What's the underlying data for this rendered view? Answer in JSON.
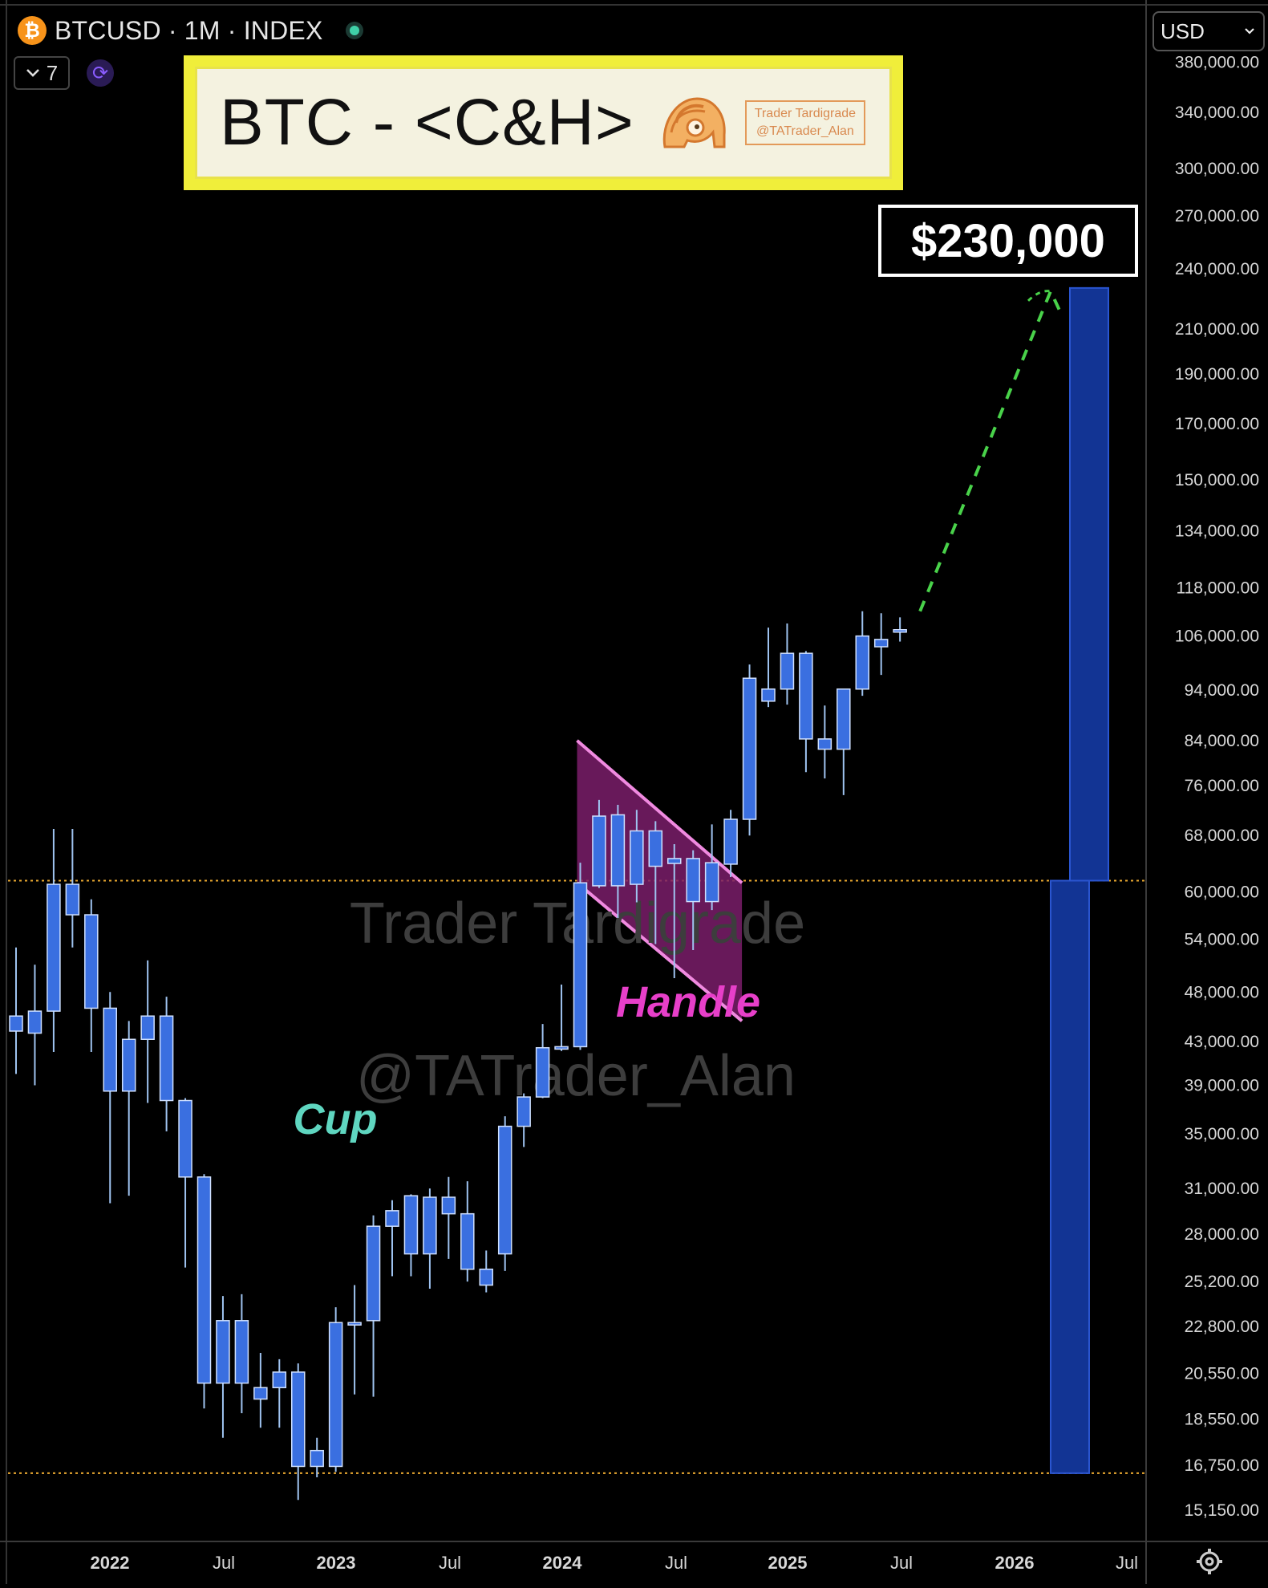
{
  "header": {
    "coin_glyph": "₿",
    "symbol_line": "BTCUSD · 1M · INDEX",
    "collapse_count": "7",
    "currency": "USD"
  },
  "title_box": {
    "title": "BTC - <C&H>",
    "badge_line1": "Trader Tardigrade",
    "badge_line2": "@TATrader_Alan"
  },
  "target_label": "$230,000",
  "watermark": {
    "line1": "Trader Tardigrade",
    "line2": "@TATrader_Alan"
  },
  "annotations": {
    "cup": "Cup",
    "handle": "Handle"
  },
  "colors": {
    "background": "#000000",
    "candle": "#3a6fe0",
    "wick": "#9fc3f0",
    "cup": "#5fd6c0",
    "handle": "#e73fc9",
    "handle_fill": "#7a1d6a",
    "target_bar": "#123494",
    "forecast": "#49d24a",
    "level_line": "#e9a830"
  },
  "chart_data": {
    "type": "candlestick",
    "title": "BTCUSD · 1M · INDEX",
    "y_scale": "log",
    "ylim": [
      14300,
      400000
    ],
    "y_ticks": [
      380000,
      340000,
      300000,
      270000,
      240000,
      210000,
      190000,
      170000,
      150000,
      134000,
      118000,
      106000,
      94000,
      84000,
      76000,
      68000,
      60000,
      54000,
      48000,
      43000,
      39000,
      35000,
      31000,
      28000,
      25200,
      22800,
      20550,
      18550,
      16750,
      15150
    ],
    "x_ticks": [
      "2022",
      "Jul",
      "2023",
      "Jul",
      "2024",
      "Jul",
      "2025",
      "Jul",
      "2026",
      "Jul"
    ],
    "series": [
      {
        "date": "2021-09",
        "open": 44000,
        "high": 53000,
        "low": 40000,
        "close": 45500
      },
      {
        "date": "2021-10",
        "open": 43800,
        "high": 51000,
        "low": 39000,
        "close": 46000
      },
      {
        "date": "2021-11",
        "open": 46000,
        "high": 69000,
        "low": 42000,
        "close": 61000
      },
      {
        "date": "2021-12",
        "open": 61000,
        "high": 69000,
        "low": 53000,
        "close": 57000
      },
      {
        "date": "2022-01",
        "open": 57000,
        "high": 59000,
        "low": 42000,
        "close": 46300
      },
      {
        "date": "2022-02",
        "open": 46300,
        "high": 48000,
        "low": 30000,
        "close": 38500
      },
      {
        "date": "2022-03",
        "open": 38500,
        "high": 45000,
        "low": 30500,
        "close": 43200
      },
      {
        "date": "2022-04",
        "open": 45500,
        "high": 51500,
        "low": 37500,
        "close": 43200
      },
      {
        "date": "2022-05",
        "open": 45500,
        "high": 47500,
        "low": 35200,
        "close": 37700
      },
      {
        "date": "2022-06",
        "open": 37700,
        "high": 37900,
        "low": 26000,
        "close": 31800
      },
      {
        "date": "2022-07",
        "open": 31800,
        "high": 32000,
        "low": 19000,
        "close": 20100
      },
      {
        "date": "2022-08",
        "open": 23100,
        "high": 24400,
        "low": 17800,
        "close": 20100
      },
      {
        "date": "2022-09",
        "open": 23100,
        "high": 24500,
        "low": 18800,
        "close": 20100
      },
      {
        "date": "2022-10",
        "open": 19400,
        "high": 21500,
        "low": 18200,
        "close": 19900
      },
      {
        "date": "2022-11",
        "open": 20600,
        "high": 21200,
        "low": 18200,
        "close": 19900
      },
      {
        "date": "2022-12",
        "open": 20600,
        "high": 21000,
        "low": 15500,
        "close": 16700
      },
      {
        "date": "2023-01",
        "open": 17300,
        "high": 17800,
        "low": 16300,
        "close": 16700
      },
      {
        "date": "2023-02",
        "open": 16700,
        "high": 23800,
        "low": 16500,
        "close": 23000
      },
      {
        "date": "2023-03",
        "open": 23000,
        "high": 25000,
        "low": 19600,
        "close": 23000
      },
      {
        "date": "2023-04",
        "open": 23100,
        "high": 29200,
        "low": 19500,
        "close": 28500
      },
      {
        "date": "2023-05",
        "open": 28500,
        "high": 30200,
        "low": 25500,
        "close": 29500
      },
      {
        "date": "2023-06",
        "open": 30500,
        "high": 30600,
        "low": 25500,
        "close": 26800
      },
      {
        "date": "2023-07",
        "open": 26800,
        "high": 31000,
        "low": 24800,
        "close": 30400
      },
      {
        "date": "2023-08",
        "open": 30400,
        "high": 31800,
        "low": 26500,
        "close": 29300
      },
      {
        "date": "2023-09",
        "open": 29300,
        "high": 31500,
        "low": 25200,
        "close": 25900
      },
      {
        "date": "2023-10",
        "open": 25900,
        "high": 27000,
        "low": 24600,
        "close": 25000
      },
      {
        "date": "2023-11",
        "open": 26800,
        "high": 36400,
        "low": 25800,
        "close": 35600
      },
      {
        "date": "2023-12",
        "open": 35600,
        "high": 38300,
        "low": 34000,
        "close": 38000
      },
      {
        "date": "2024-01",
        "open": 38000,
        "high": 44700,
        "low": 37900,
        "close": 42400
      },
      {
        "date": "2024-02",
        "open": 42300,
        "high": 48800,
        "low": 42100,
        "close": 42500
      },
      {
        "date": "2024-03",
        "open": 42500,
        "high": 64000,
        "low": 42200,
        "close": 61200
      },
      {
        "date": "2024-04",
        "open": 71000,
        "high": 73600,
        "low": 60500,
        "close": 60800
      },
      {
        "date": "2024-05",
        "open": 71200,
        "high": 72800,
        "low": 56600,
        "close": 60800
      },
      {
        "date": "2024-06",
        "open": 68700,
        "high": 72000,
        "low": 58600,
        "close": 61000
      },
      {
        "date": "2024-07",
        "open": 63500,
        "high": 70200,
        "low": 53400,
        "close": 68700
      },
      {
        "date": "2024-08",
        "open": 64600,
        "high": 66700,
        "low": 49500,
        "close": 63900
      },
      {
        "date": "2024-09",
        "open": 64600,
        "high": 65800,
        "low": 52700,
        "close": 58700
      },
      {
        "date": "2024-10",
        "open": 58700,
        "high": 69700,
        "low": 57600,
        "close": 64000
      },
      {
        "date": "2024-11",
        "open": 63800,
        "high": 72000,
        "low": 62000,
        "close": 70500
      },
      {
        "date": "2024-12",
        "open": 70500,
        "high": 99500,
        "low": 68000,
        "close": 96500
      },
      {
        "date": "2025-01",
        "open": 91700,
        "high": 108000,
        "low": 90500,
        "close": 94200
      },
      {
        "date": "2025-02",
        "open": 94200,
        "high": 109000,
        "low": 91000,
        "close": 102000
      },
      {
        "date": "2025-03",
        "open": 102000,
        "high": 102500,
        "low": 78300,
        "close": 84300
      },
      {
        "date": "2025-04",
        "open": 82400,
        "high": 90800,
        "low": 77200,
        "close": 84300
      },
      {
        "date": "2025-05",
        "open": 82400,
        "high": 93200,
        "low": 74400,
        "close": 94200
      },
      {
        "date": "2025-06",
        "open": 94200,
        "high": 112000,
        "low": 92800,
        "close": 106000
      },
      {
        "date": "2025-07",
        "open": 103500,
        "high": 111500,
        "low": 97200,
        "close": 105200
      },
      {
        "date": "2025-08",
        "open": 107200,
        "high": 110500,
        "low": 104700,
        "close": 107500
      }
    ],
    "horizontal_levels": [
      61500,
      16450
    ],
    "forecast_target": 230000,
    "handle_channel": {
      "start": "2024-03",
      "end": "2024-11"
    }
  }
}
